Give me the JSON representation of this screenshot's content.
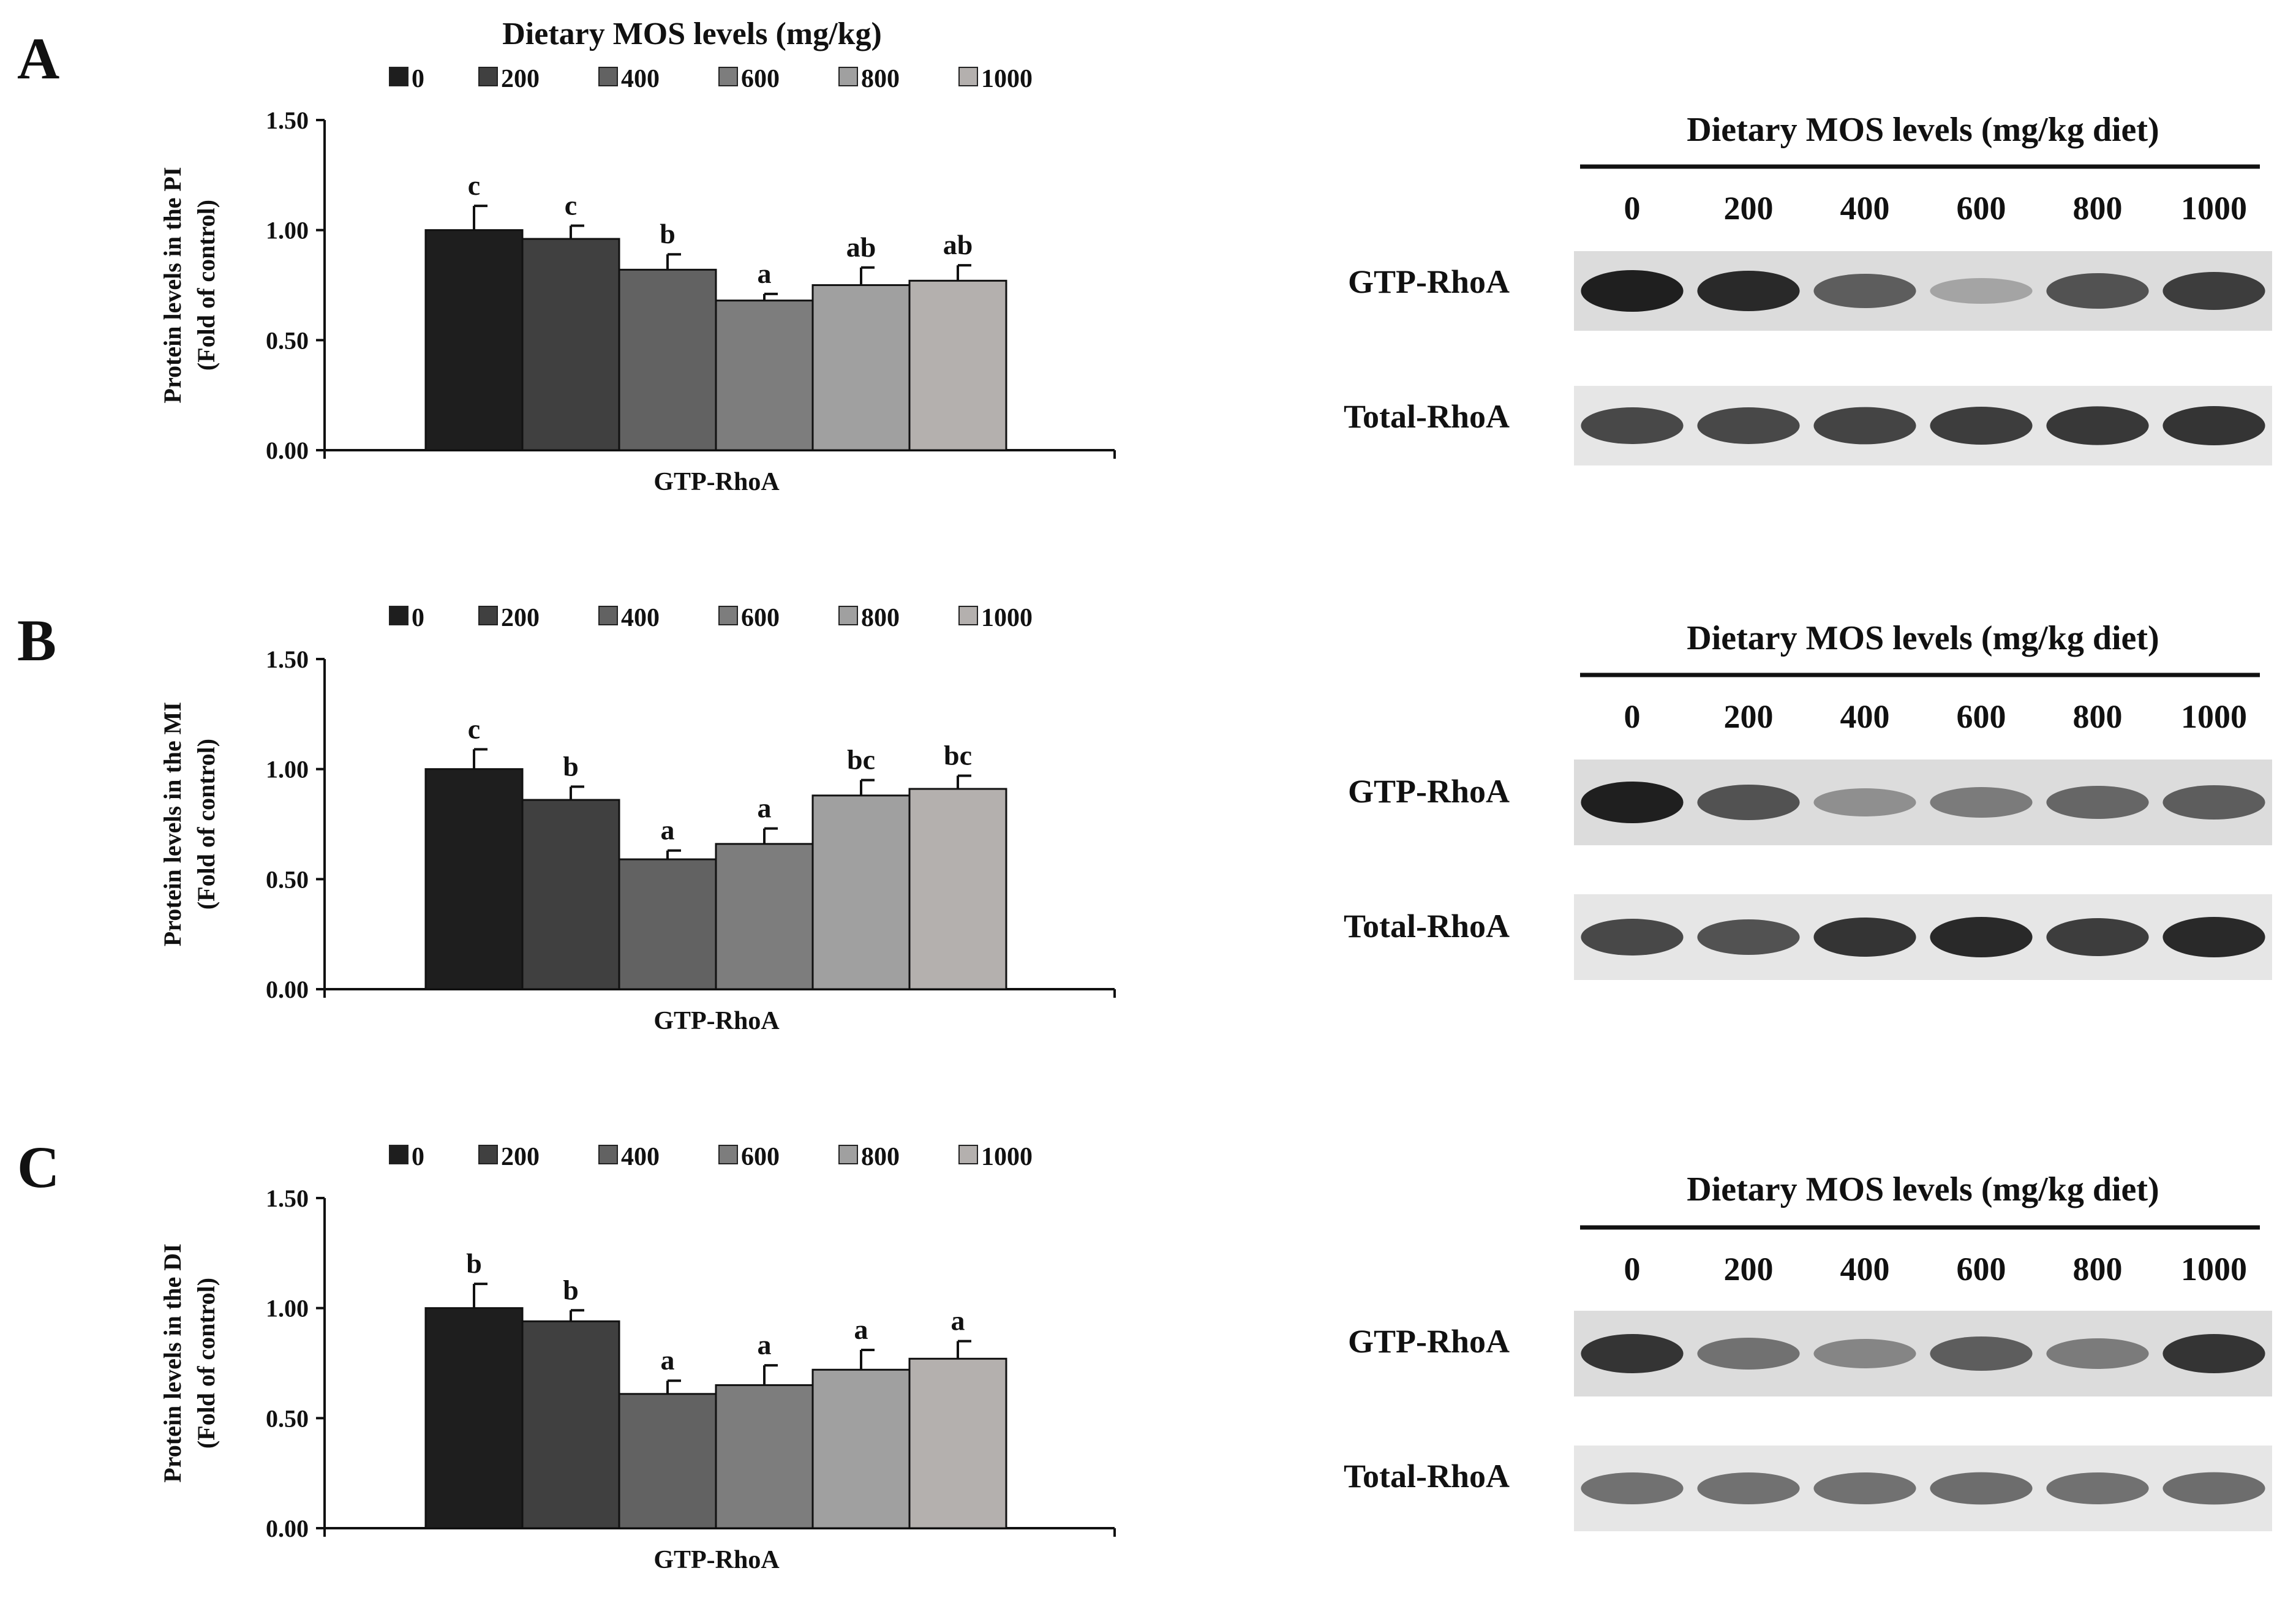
{
  "panels": [
    {
      "letter": "A",
      "chart_data": {
        "type": "bar",
        "title": "Dietary MOS levels (mg/kg)",
        "categories": [
          "GTP-RhoA"
        ],
        "xlabel": "GTP-RhoA",
        "ylabel": [
          "Protein levels in the PI",
          "(Fold of control)"
        ],
        "ylim": [
          0,
          1.5
        ],
        "yticks": [
          "0.00",
          "0.50",
          "1.00",
          "1.50"
        ],
        "legend_position": "top",
        "series": [
          {
            "name": "0",
            "value": 1.0,
            "error": 0.11,
            "letter": "c",
            "color": "#1e1e1e"
          },
          {
            "name": "200",
            "value": 0.96,
            "error": 0.06,
            "letter": "c",
            "color": "#404040"
          },
          {
            "name": "400",
            "value": 0.82,
            "error": 0.07,
            "letter": "b",
            "color": "#626262"
          },
          {
            "name": "600",
            "value": 0.68,
            "error": 0.03,
            "letter": "a",
            "color": "#7d7d7d"
          },
          {
            "name": "800",
            "value": 0.75,
            "error": 0.08,
            "letter": "ab",
            "color": "#a0a0a0"
          },
          {
            "name": "1000",
            "value": 0.77,
            "error": 0.07,
            "letter": "ab",
            "color": "#b4b0ae"
          }
        ]
      },
      "blot": {
        "title": "Dietary MOS levels (mg/kg diet)",
        "lanes": [
          "0",
          "200",
          "400",
          "600",
          "800",
          "1000"
        ],
        "rows": [
          {
            "label": "GTP-RhoA",
            "intensity": [
              1.0,
              0.95,
              0.7,
              0.35,
              0.75,
              0.85
            ]
          },
          {
            "label": "Total-RhoA",
            "intensity": [
              0.8,
              0.8,
              0.82,
              0.85,
              0.88,
              0.9
            ]
          }
        ]
      }
    },
    {
      "letter": "B",
      "chart_data": {
        "type": "bar",
        "title": "",
        "categories": [
          "GTP-RhoA"
        ],
        "xlabel": "GTP-RhoA",
        "ylabel": [
          "Protein levels in the MI",
          "(Fold of control)"
        ],
        "ylim": [
          0,
          1.5
        ],
        "yticks": [
          "0.00",
          "0.50",
          "1.00",
          "1.50"
        ],
        "legend_position": "top",
        "series": [
          {
            "name": "0",
            "value": 1.0,
            "error": 0.09,
            "letter": "c",
            "color": "#1e1e1e"
          },
          {
            "name": "200",
            "value": 0.86,
            "error": 0.06,
            "letter": "b",
            "color": "#404040"
          },
          {
            "name": "400",
            "value": 0.59,
            "error": 0.04,
            "letter": "a",
            "color": "#626262"
          },
          {
            "name": "600",
            "value": 0.66,
            "error": 0.07,
            "letter": "a",
            "color": "#7d7d7d"
          },
          {
            "name": "800",
            "value": 0.88,
            "error": 0.07,
            "letter": "bc",
            "color": "#a0a0a0"
          },
          {
            "name": "1000",
            "value": 0.91,
            "error": 0.06,
            "letter": "bc",
            "color": "#b4b0ae"
          }
        ]
      },
      "blot": {
        "title": "Dietary MOS levels (mg/kg diet)",
        "lanes": [
          "0",
          "200",
          "400",
          "600",
          "800",
          "1000"
        ],
        "rows": [
          {
            "label": "GTP-RhoA",
            "intensity": [
              1.0,
              0.75,
              0.45,
              0.55,
              0.65,
              0.7
            ]
          },
          {
            "label": "Total-RhoA",
            "intensity": [
              0.8,
              0.75,
              0.9,
              0.95,
              0.85,
              0.95
            ]
          }
        ]
      }
    },
    {
      "letter": "C",
      "chart_data": {
        "type": "bar",
        "title": "",
        "categories": [
          "GTP-RhoA"
        ],
        "xlabel": "GTP-RhoA",
        "ylabel": [
          "Protein levels in the DI",
          "(Fold of control)"
        ],
        "ylim": [
          0,
          1.5
        ],
        "yticks": [
          "0.00",
          "0.50",
          "1.00",
          "1.50"
        ],
        "legend_position": "top",
        "series": [
          {
            "name": "0",
            "value": 1.0,
            "error": 0.11,
            "letter": "b",
            "color": "#1e1e1e"
          },
          {
            "name": "200",
            "value": 0.94,
            "error": 0.05,
            "letter": "b",
            "color": "#404040"
          },
          {
            "name": "400",
            "value": 0.61,
            "error": 0.06,
            "letter": "a",
            "color": "#626262"
          },
          {
            "name": "600",
            "value": 0.65,
            "error": 0.09,
            "letter": "a",
            "color": "#7d7d7d"
          },
          {
            "name": "800",
            "value": 0.72,
            "error": 0.09,
            "letter": "a",
            "color": "#a0a0a0"
          },
          {
            "name": "1000",
            "value": 0.77,
            "error": 0.08,
            "letter": "a",
            "color": "#b4b0ae"
          }
        ]
      },
      "blot": {
        "title": "Dietary MOS levels (mg/kg diet)",
        "lanes": [
          "0",
          "200",
          "400",
          "600",
          "800",
          "1000"
        ],
        "rows": [
          {
            "label": "GTP-RhoA",
            "intensity": [
              0.9,
              0.6,
              0.5,
              0.7,
              0.55,
              0.9
            ]
          },
          {
            "label": "Total-RhoA",
            "intensity": [
              0.6,
              0.6,
              0.6,
              0.62,
              0.6,
              0.62
            ]
          }
        ]
      }
    }
  ]
}
